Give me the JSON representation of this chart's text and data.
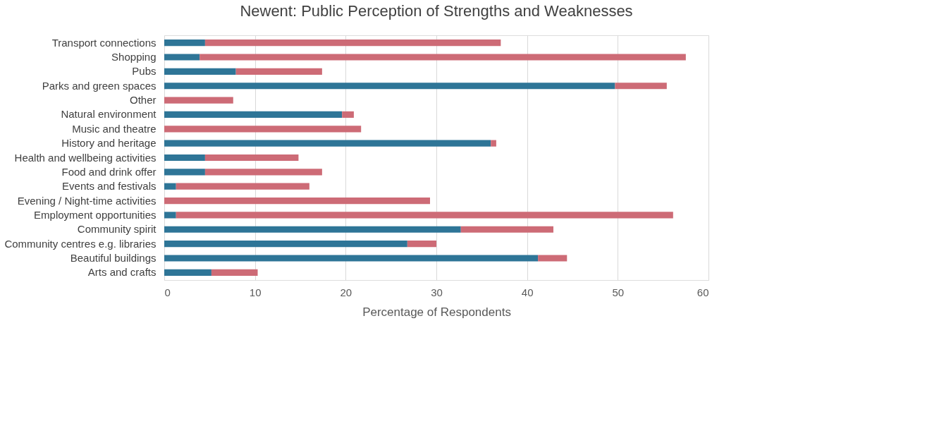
{
  "chart_data": {
    "type": "bar",
    "orientation": "horizontal",
    "stacked": true,
    "title": "Newent: Public Perception of Strengths and Weaknesses",
    "xlabel": "Percentage of Respondents",
    "categories": [
      "Transport connections",
      "Shopping",
      "Pubs",
      "Parks and green spaces",
      "Other",
      "Natural environment",
      "Music and theatre",
      "History and heritage",
      "Health and wellbeing activities",
      "Food and drink offer",
      "Events and festivals",
      "Evening / Night-time activities",
      "Employment opportunities",
      "Community spirit",
      "Community centres e.g. libraries",
      "Beautiful buildings",
      "Arts and crafts"
    ],
    "series": [
      {
        "color": "#2e7597",
        "values": [
          4.5,
          3.9,
          7.9,
          49.7,
          null,
          19.6,
          null,
          36.0,
          4.5,
          4.5,
          1.3,
          null,
          1.3,
          32.7,
          26.8,
          41.2,
          5.2
        ]
      },
      {
        "color": "#cd6b76",
        "values": [
          32.6,
          53.6,
          9.5,
          5.7,
          7.6,
          1.3,
          21.7,
          0.6,
          10.3,
          12.9,
          14.7,
          29.3,
          54.8,
          10.2,
          3.2,
          3.2,
          5.1
        ]
      }
    ],
    "xlim": [
      0,
      60
    ],
    "xticks": [
      0,
      10,
      20,
      30,
      40,
      50,
      60
    ],
    "grid": "x",
    "legend": false
  }
}
